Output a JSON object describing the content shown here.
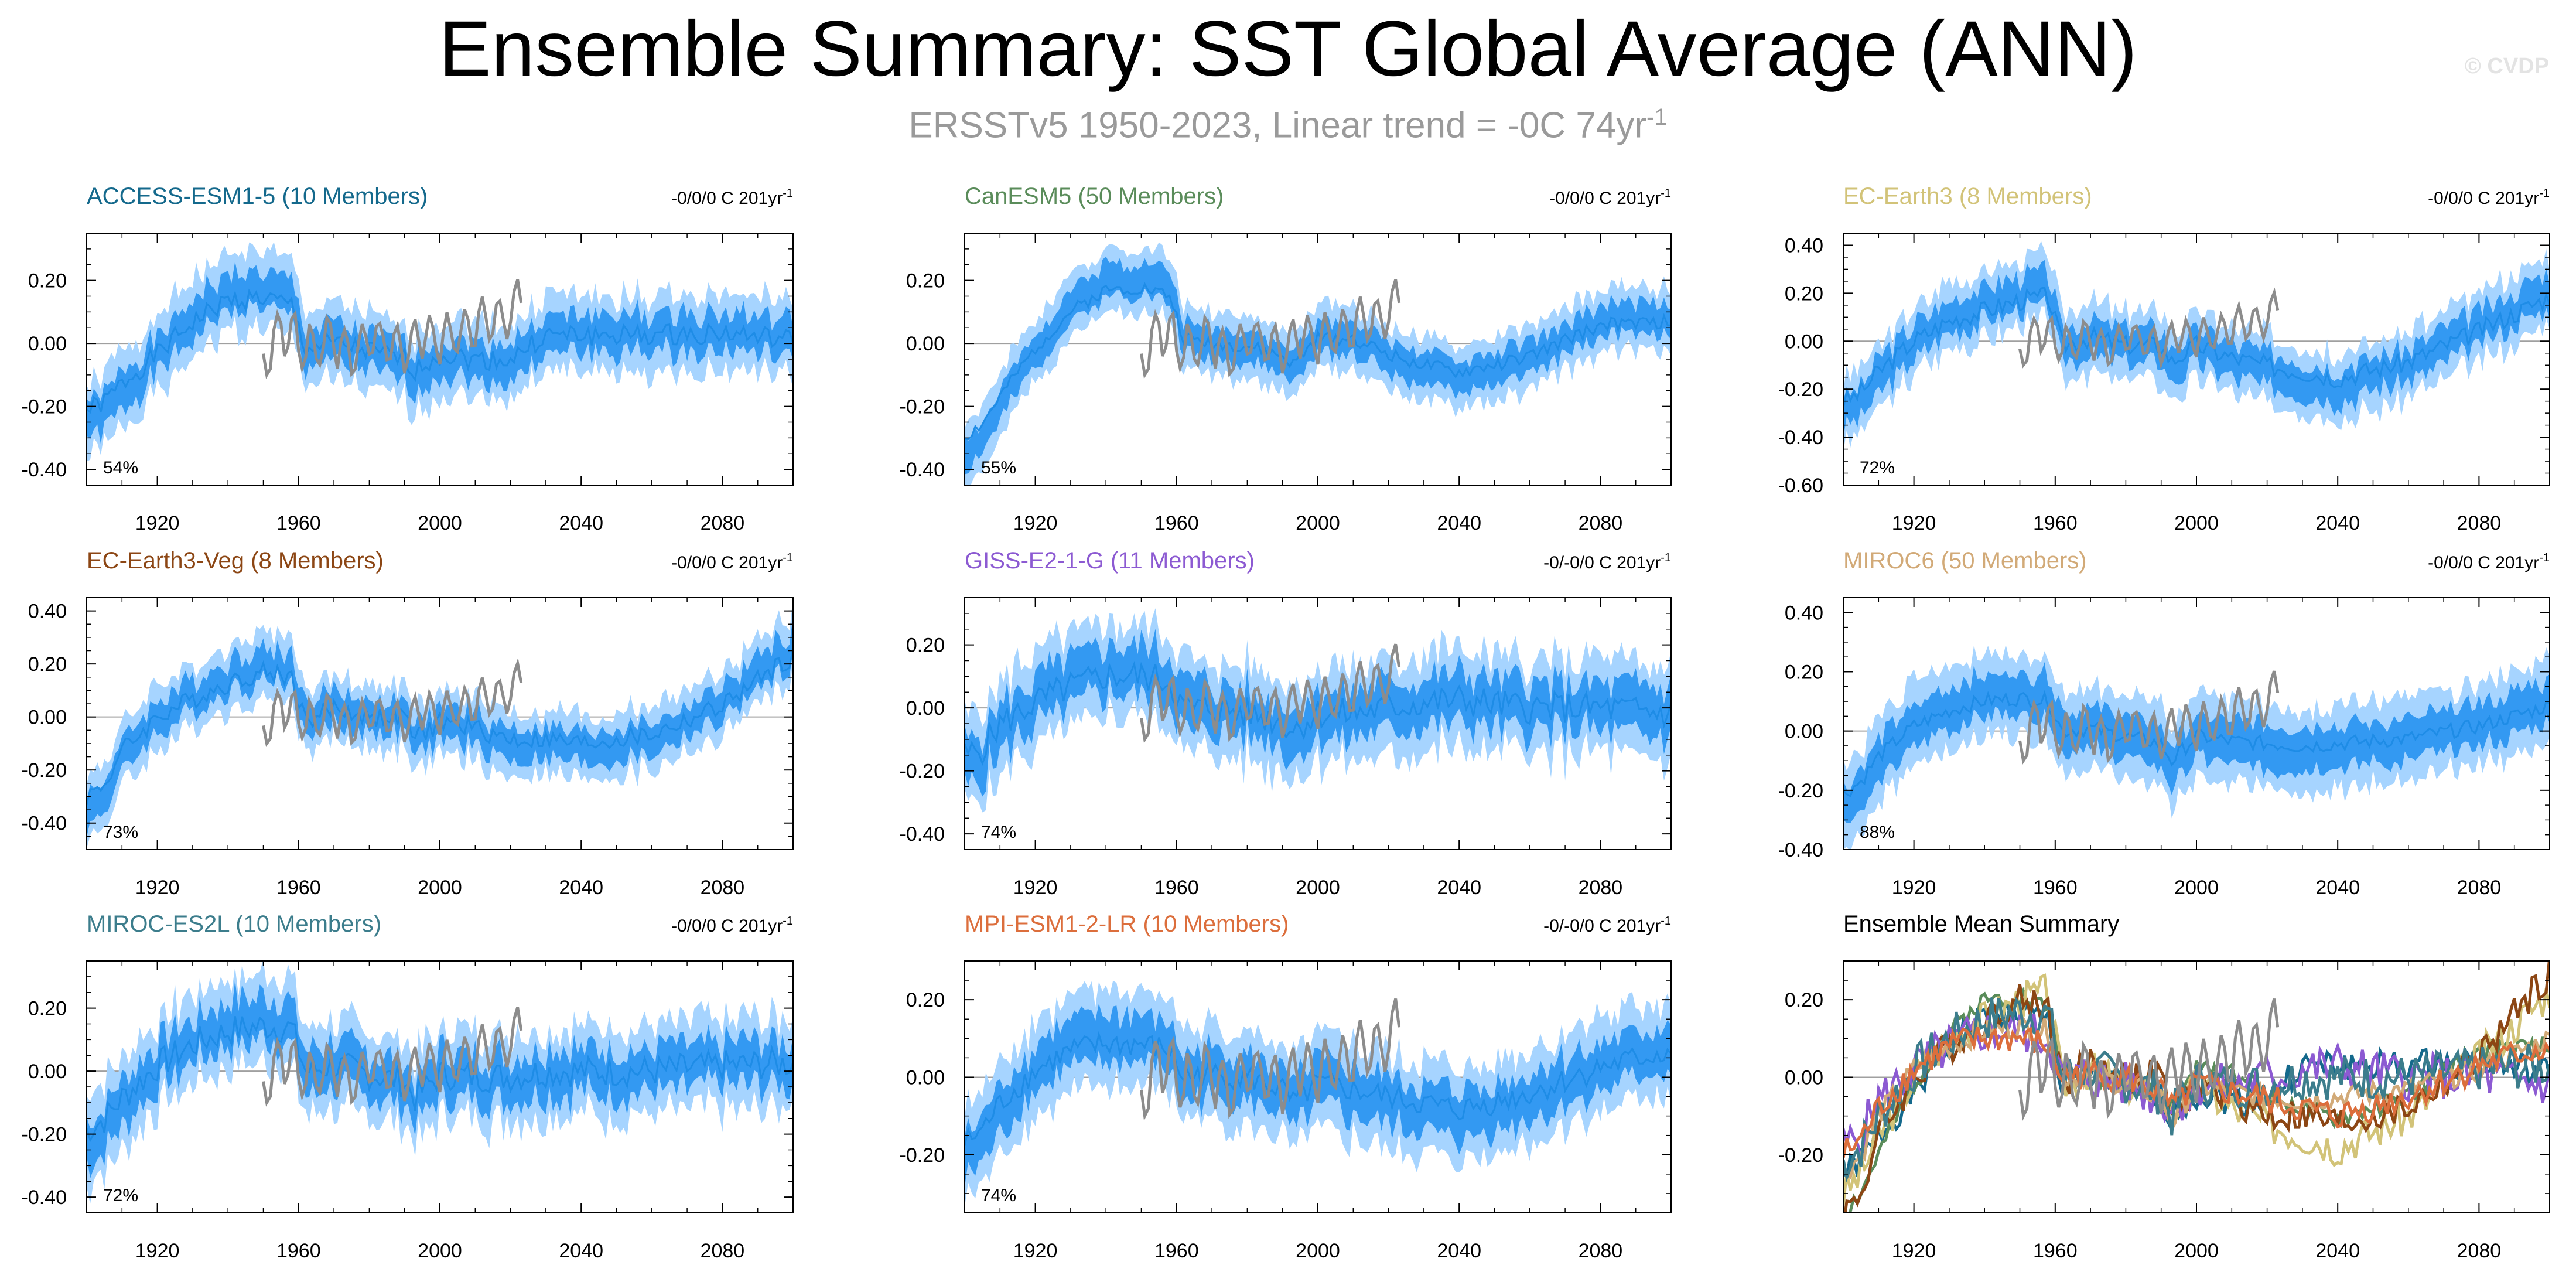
{
  "header": {
    "title": "Ensemble Summary: SST Global Average (ANN)",
    "subtitle_main": "ERSSTv5 1950-2023, Linear trend = -0C 74yr",
    "subtitle_sup": "-1",
    "credit": "© CVDP"
  },
  "colors": {
    "shade_outer": "#a6d4ff",
    "shade_inner": "#3399f2",
    "mean_line": "#1e8ce6",
    "obs_line": "#8c8c8c"
  },
  "chart_data": [
    {
      "type": "line",
      "name": "ACCESS-ESM1-5 (10 Members)",
      "title_color": "#14698c",
      "trend_label": "-0/0/0 C 201yr",
      "trend_sup": "-1",
      "pct": "54%",
      "ylim": [
        -0.45,
        0.35
      ],
      "yticks": [
        0.2,
        0.0,
        -0.2,
        -0.4
      ],
      "ytick_labels": [
        "0.20",
        "0.00",
        "-0.20",
        "-0.40"
      ],
      "xlim": [
        1900,
        2100
      ],
      "xticks": [
        1920,
        1960,
        2000,
        2040,
        2080
      ],
      "xtick_labels": [
        "1920",
        "1960",
        "2000",
        "2040",
        "2080"
      ],
      "x_anchor": [
        1900,
        1905,
        1910,
        1920,
        1930,
        1940,
        1950,
        1958,
        1962,
        1970,
        1980,
        1990,
        1993,
        2000,
        2010,
        2020,
        2030,
        2040,
        2060,
        2080,
        2100
      ],
      "mean_anchor": [
        -0.25,
        -0.22,
        -0.15,
        -0.04,
        0.08,
        0.16,
        0.17,
        0.14,
        -0.02,
        0.0,
        -0.03,
        -0.06,
        -0.1,
        -0.04,
        -0.06,
        -0.06,
        0.03,
        0.03,
        0.03,
        0.04,
        0.01
      ],
      "spread": 0.12,
      "inner_frac": 0.5,
      "noise": 0.04,
      "seed": 1
    },
    {
      "type": "line",
      "name": "CanESM5 (50 Members)",
      "title_color": "#5a8c5a",
      "trend_label": "-0/0/0 C 201yr",
      "trend_sup": "-1",
      "pct": "55%",
      "ylim": [
        -0.45,
        0.35
      ],
      "yticks": [
        0.2,
        0.0,
        -0.2,
        -0.4
      ],
      "ytick_labels": [
        "0.20",
        "0.00",
        "-0.20",
        "-0.40"
      ],
      "xlim": [
        1900,
        2100
      ],
      "xticks": [
        1920,
        1960,
        2000,
        2040,
        2080
      ],
      "xtick_labels": [
        "1920",
        "1960",
        "2000",
        "2040",
        "2080"
      ],
      "x_anchor": [
        1900,
        1905,
        1910,
        1920,
        1930,
        1940,
        1950,
        1958,
        1962,
        1970,
        1980,
        1990,
        1993,
        2000,
        2010,
        2020,
        2030,
        2040,
        2060,
        2080,
        2100
      ],
      "mean_anchor": [
        -0.35,
        -0.3,
        -0.2,
        -0.02,
        0.12,
        0.2,
        0.21,
        0.18,
        0.02,
        0.0,
        -0.01,
        -0.05,
        -0.08,
        0.02,
        0.02,
        -0.04,
        -0.08,
        -0.11,
        -0.05,
        0.07,
        0.08
      ],
      "spread": 0.1,
      "inner_frac": 0.5,
      "noise": 0.025,
      "seed": 2
    },
    {
      "type": "line",
      "name": "EC-Earth3 (8 Members)",
      "title_color": "#d2c378",
      "trend_label": "-0/0/0 C 201yr",
      "trend_sup": "-1",
      "pct": "72%",
      "ylim": [
        -0.6,
        0.45
      ],
      "yticks": [
        0.4,
        0.2,
        0.0,
        -0.2,
        -0.4,
        -0.6
      ],
      "ytick_labels": [
        "0.40",
        "0.20",
        "0.00",
        "-0.20",
        "-0.40",
        "-0.60"
      ],
      "xlim": [
        1900,
        2100
      ],
      "xticks": [
        1920,
        1960,
        2000,
        2040,
        2080
      ],
      "xtick_labels": [
        "1920",
        "1960",
        "2000",
        "2040",
        "2080"
      ],
      "x_anchor": [
        1900,
        1905,
        1910,
        1920,
        1930,
        1940,
        1950,
        1958,
        1962,
        1970,
        1980,
        1990,
        1993,
        2000,
        2010,
        2020,
        2030,
        2040,
        2060,
        2080,
        2100
      ],
      "mean_anchor": [
        -0.3,
        -0.25,
        -0.15,
        0.0,
        0.1,
        0.15,
        0.2,
        0.22,
        -0.02,
        0.02,
        -0.02,
        -0.02,
        -0.1,
        -0.02,
        -0.08,
        -0.12,
        -0.15,
        -0.18,
        -0.1,
        0.05,
        0.22
      ],
      "spread": 0.14,
      "inner_frac": 0.5,
      "noise": 0.05,
      "seed": 3
    },
    {
      "type": "line",
      "name": "EC-Earth3-Veg (8 Members)",
      "title_color": "#8c4614",
      "trend_label": "-0/0/0 C 201yr",
      "trend_sup": "-1",
      "pct": "73%",
      "ylim": [
        -0.5,
        0.45
      ],
      "yticks": [
        0.4,
        0.2,
        0.0,
        -0.2,
        -0.4
      ],
      "ytick_labels": [
        "0.40",
        "0.20",
        "0.00",
        "-0.20",
        "-0.40"
      ],
      "xlim": [
        1900,
        2100
      ],
      "xticks": [
        1920,
        1960,
        2000,
        2040,
        2080
      ],
      "xtick_labels": [
        "1920",
        "1960",
        "2000",
        "2040",
        "2080"
      ],
      "x_anchor": [
        1900,
        1905,
        1910,
        1920,
        1930,
        1940,
        1950,
        1958,
        1962,
        1970,
        1980,
        1990,
        1993,
        2000,
        2010,
        2020,
        2030,
        2040,
        2060,
        2080,
        2100
      ],
      "mean_anchor": [
        -0.35,
        -0.3,
        -0.15,
        0.0,
        0.08,
        0.15,
        0.2,
        0.18,
        -0.02,
        0.04,
        0.0,
        0.0,
        -0.1,
        -0.02,
        -0.05,
        -0.1,
        -0.1,
        -0.12,
        -0.08,
        0.05,
        0.27
      ],
      "spread": 0.12,
      "inner_frac": 0.5,
      "noise": 0.045,
      "seed": 4
    },
    {
      "type": "line",
      "name": "GISS-E2-1-G (11 Members)",
      "title_color": "#8c5ad2",
      "trend_label": "-0/-0/0 C 201yr",
      "trend_sup": "-1",
      "pct": "74%",
      "ylim": [
        -0.45,
        0.35
      ],
      "yticks": [
        0.2,
        0.0,
        -0.2,
        -0.4
      ],
      "ytick_labels": [
        "0.20",
        "0.00",
        "-0.20",
        "-0.40"
      ],
      "xlim": [
        1900,
        2100
      ],
      "xticks": [
        1920,
        1960,
        2000,
        2040,
        2080
      ],
      "xtick_labels": [
        "1920",
        "1960",
        "2000",
        "2040",
        "2080"
      ],
      "x_anchor": [
        1900,
        1905,
        1910,
        1920,
        1930,
        1940,
        1950,
        1958,
        1962,
        1970,
        1980,
        1990,
        1993,
        2000,
        2010,
        2020,
        2030,
        2040,
        2060,
        2080,
        2100
      ],
      "mean_anchor": [
        -0.18,
        -0.15,
        -0.06,
        0.02,
        0.08,
        0.12,
        0.12,
        0.1,
        0.0,
        0.0,
        -0.02,
        -0.05,
        -0.08,
        -0.02,
        -0.02,
        0.0,
        0.02,
        0.03,
        0.0,
        0.0,
        -0.02
      ],
      "spread": 0.15,
      "inner_frac": 0.5,
      "noise": 0.06,
      "seed": 5
    },
    {
      "type": "line",
      "name": "MIROC6 (50 Members)",
      "title_color": "#d2aa78",
      "trend_label": "-0/0/0 C 201yr",
      "trend_sup": "-1",
      "pct": "88%",
      "ylim": [
        -0.4,
        0.45
      ],
      "yticks": [
        0.4,
        0.2,
        0.0,
        -0.2,
        -0.4
      ],
      "ytick_labels": [
        "0.40",
        "0.20",
        "0.00",
        "-0.20",
        "-0.40"
      ],
      "xlim": [
        1900,
        2100
      ],
      "xticks": [
        1920,
        1960,
        2000,
        2040,
        2080
      ],
      "xtick_labels": [
        "1920",
        "1960",
        "2000",
        "2040",
        "2080"
      ],
      "x_anchor": [
        1900,
        1905,
        1910,
        1920,
        1930,
        1940,
        1950,
        1958,
        1962,
        1970,
        1980,
        1990,
        1993,
        2000,
        2010,
        2020,
        2030,
        2040,
        2060,
        2080,
        2100
      ],
      "mean_anchor": [
        -0.25,
        -0.2,
        -0.1,
        0.02,
        0.08,
        0.12,
        0.13,
        0.12,
        0.0,
        0.01,
        -0.02,
        -0.05,
        -0.12,
        -0.02,
        -0.04,
        -0.05,
        -0.06,
        -0.05,
        -0.03,
        0.02,
        0.1
      ],
      "spread": 0.14,
      "inner_frac": 0.5,
      "noise": 0.03,
      "seed": 6
    },
    {
      "type": "line",
      "name": "MIROC-ES2L (10 Members)",
      "title_color": "#3c7d8c",
      "trend_label": "-0/0/0 C 201yr",
      "trend_sup": "-1",
      "pct": "72%",
      "ylim": [
        -0.45,
        0.35
      ],
      "yticks": [
        0.2,
        0.0,
        -0.2,
        -0.4
      ],
      "ytick_labels": [
        "0.20",
        "0.00",
        "-0.20",
        "-0.40"
      ],
      "xlim": [
        1900,
        2100
      ],
      "xticks": [
        1920,
        1960,
        2000,
        2040,
        2080
      ],
      "xtick_labels": [
        "1920",
        "1960",
        "2000",
        "2040",
        "2080"
      ],
      "x_anchor": [
        1900,
        1905,
        1910,
        1920,
        1930,
        1940,
        1950,
        1958,
        1962,
        1970,
        1980,
        1990,
        1993,
        2000,
        2010,
        2020,
        2030,
        2040,
        2060,
        2080,
        2100
      ],
      "mean_anchor": [
        -0.22,
        -0.18,
        -0.1,
        0.02,
        0.1,
        0.15,
        0.17,
        0.16,
        0.0,
        0.02,
        -0.01,
        -0.04,
        -0.1,
        -0.01,
        -0.02,
        -0.02,
        0.0,
        0.0,
        0.0,
        0.02,
        0.03
      ],
      "spread": 0.14,
      "inner_frac": 0.5,
      "noise": 0.06,
      "seed": 7
    },
    {
      "type": "line",
      "name": "MPI-ESM1-2-LR (10 Members)",
      "title_color": "#dc6e3c",
      "trend_label": "-0/-0/0 C 201yr",
      "trend_sup": "-1",
      "pct": "74%",
      "ylim": [
        -0.35,
        0.3
      ],
      "yticks": [
        0.2,
        0.0,
        -0.2
      ],
      "ytick_labels": [
        "0.20",
        "0.00",
        "-0.20"
      ],
      "xlim": [
        1900,
        2100
      ],
      "xticks": [
        1920,
        1960,
        2000,
        2040,
        2080
      ],
      "xtick_labels": [
        "1920",
        "1960",
        "2000",
        "2040",
        "2080"
      ],
      "x_anchor": [
        1900,
        1905,
        1910,
        1920,
        1930,
        1940,
        1950,
        1958,
        1962,
        1970,
        1980,
        1990,
        1993,
        2000,
        2010,
        2020,
        2030,
        2040,
        2060,
        2080,
        2100
      ],
      "mean_anchor": [
        -0.2,
        -0.16,
        -0.08,
        0.02,
        0.08,
        0.1,
        0.1,
        0.08,
        0.0,
        0.01,
        0.0,
        -0.04,
        -0.08,
        -0.02,
        -0.04,
        -0.06,
        -0.08,
        -0.1,
        -0.05,
        0.03,
        0.08
      ],
      "spread": 0.12,
      "inner_frac": 0.5,
      "noise": 0.04,
      "seed": 8
    },
    {
      "type": "line",
      "name": "Ensemble Mean Summary",
      "title_color": "#000000",
      "trend_label": "",
      "trend_sup": "",
      "pct": "",
      "ylim": [
        -0.35,
        0.3
      ],
      "yticks": [
        0.2,
        0.0,
        -0.2
      ],
      "ytick_labels": [
        "0.20",
        "0.00",
        "-0.20"
      ],
      "xlim": [
        1900,
        2100
      ],
      "xticks": [
        1920,
        1960,
        2000,
        2040,
        2080
      ],
      "xtick_labels": [
        "1920",
        "1960",
        "2000",
        "2040",
        "2080"
      ],
      "summary": true
    }
  ],
  "obs": {
    "x_anchor": [
      1950,
      1955,
      1960,
      1965,
      1970,
      1975,
      1980,
      1985,
      1990,
      1995,
      2000,
      2005,
      2010,
      2015,
      2020,
      2023
    ],
    "y_anchor": [
      -0.05,
      0.05,
      0.0,
      -0.02,
      0.01,
      -0.05,
      0.02,
      0.0,
      -0.02,
      0.03,
      0.02,
      0.03,
      0.05,
      0.08,
      0.1,
      0.14
    ],
    "noise": 0.08,
    "seed": 99
  }
}
